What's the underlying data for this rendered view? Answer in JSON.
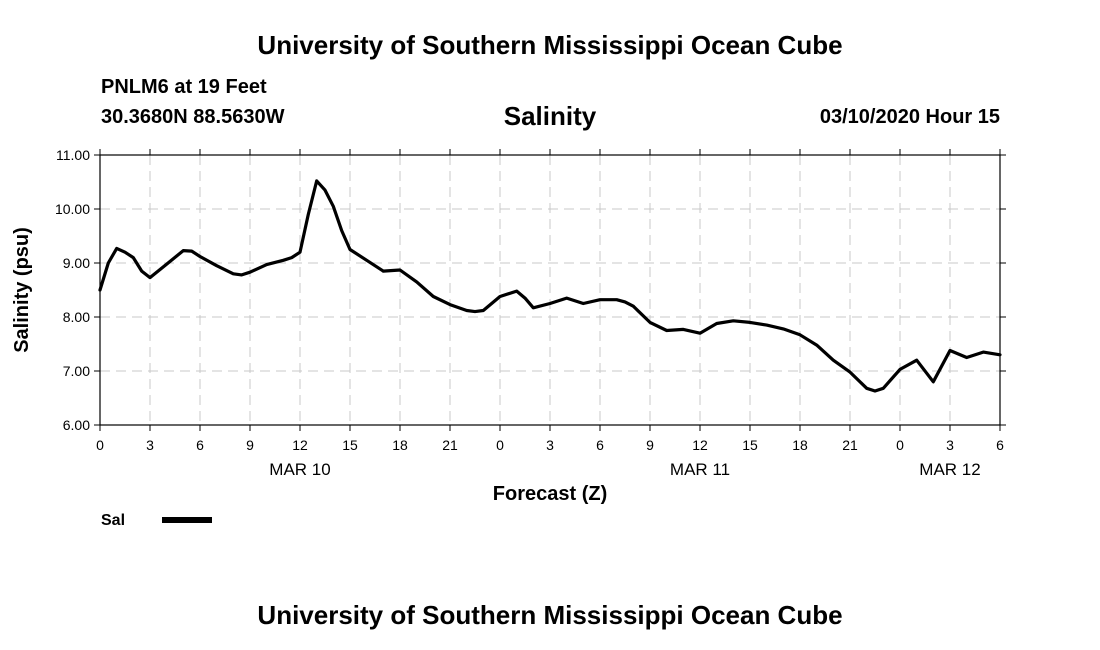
{
  "header": {
    "institution": "University of Southern Mississippi Ocean Cube",
    "station": "PNLM6 at 19 Feet",
    "coordinates": "30.3680N 88.5630W",
    "timestamp": "03/10/2020 Hour 15"
  },
  "footer": {
    "institution": "University of Southern Mississippi Ocean Cube"
  },
  "chart_data": {
    "type": "line",
    "title": "Salinity",
    "xlabel": "Forecast (Z)",
    "ylabel": "Salinity (psu)",
    "xlim": [
      0,
      54
    ],
    "ylim": [
      6.0,
      11.0
    ],
    "y_ticks": [
      {
        "value": 6.0,
        "label": "6.00"
      },
      {
        "value": 7.0,
        "label": "7.00"
      },
      {
        "value": 8.0,
        "label": "8.00"
      },
      {
        "value": 9.0,
        "label": "9.00"
      },
      {
        "value": 10.0,
        "label": "10.00"
      },
      {
        "value": 11.0,
        "label": "11.00"
      }
    ],
    "x_ticks": [
      {
        "value": 0,
        "label": "0"
      },
      {
        "value": 3,
        "label": "3"
      },
      {
        "value": 6,
        "label": "6"
      },
      {
        "value": 9,
        "label": "9"
      },
      {
        "value": 12,
        "label": "12"
      },
      {
        "value": 15,
        "label": "15"
      },
      {
        "value": 18,
        "label": "18"
      },
      {
        "value": 21,
        "label": "21"
      },
      {
        "value": 24,
        "label": "0"
      },
      {
        "value": 27,
        "label": "3"
      },
      {
        "value": 30,
        "label": "6"
      },
      {
        "value": 33,
        "label": "9"
      },
      {
        "value": 36,
        "label": "12"
      },
      {
        "value": 39,
        "label": "15"
      },
      {
        "value": 42,
        "label": "18"
      },
      {
        "value": 45,
        "label": "21"
      },
      {
        "value": 48,
        "label": "0"
      },
      {
        "value": 51,
        "label": "3"
      },
      {
        "value": 54,
        "label": "6"
      }
    ],
    "date_labels": [
      {
        "value": 12,
        "label": "MAR 10"
      },
      {
        "value": 36,
        "label": "MAR 11"
      },
      {
        "value": 51,
        "label": "MAR 12"
      }
    ],
    "grid": true,
    "series": [
      {
        "name": "Sal",
        "color": "#000000",
        "x": [
          0,
          0.5,
          1,
          1.5,
          2,
          2.5,
          3,
          4,
          5,
          5.5,
          6,
          7,
          8,
          8.5,
          9,
          10,
          11,
          11.5,
          12,
          12.5,
          13,
          13.5,
          14,
          14.5,
          15,
          16,
          17,
          18,
          19,
          20,
          21,
          22,
          22.5,
          23,
          24,
          25,
          25.5,
          26,
          27,
          28,
          29,
          30,
          31,
          31.5,
          32,
          33,
          34,
          35,
          36,
          37,
          38,
          39,
          40,
          41,
          42,
          43,
          44,
          45,
          46,
          46.5,
          47,
          48,
          49,
          50,
          51,
          52,
          53,
          54
        ],
        "values": [
          8.5,
          9.0,
          9.27,
          9.2,
          9.1,
          8.85,
          8.73,
          8.98,
          9.23,
          9.22,
          9.12,
          8.95,
          8.8,
          8.78,
          8.83,
          8.97,
          9.05,
          9.1,
          9.2,
          9.9,
          10.52,
          10.35,
          10.05,
          9.6,
          9.25,
          9.05,
          8.85,
          8.87,
          8.65,
          8.38,
          8.23,
          8.12,
          8.1,
          8.12,
          8.38,
          8.48,
          8.35,
          8.17,
          8.25,
          8.35,
          8.25,
          8.32,
          8.32,
          8.28,
          8.2,
          7.9,
          7.75,
          7.77,
          7.7,
          7.88,
          7.93,
          7.9,
          7.85,
          7.78,
          7.67,
          7.48,
          7.2,
          6.98,
          6.68,
          6.63,
          6.68,
          7.03,
          7.2,
          6.8,
          7.38,
          7.25,
          7.35,
          7.3
        ]
      }
    ],
    "legend": {
      "label": "Sal",
      "position": "bottom-left"
    }
  }
}
